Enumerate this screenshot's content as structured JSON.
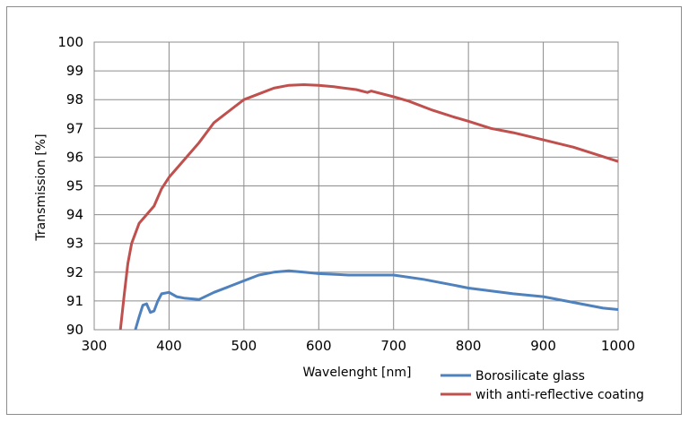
{
  "chart_data": {
    "type": "line",
    "title": "",
    "xlabel": "Wavelenght [nm]",
    "ylabel": "Transmission  [%]",
    "xlim": [
      300,
      1000
    ],
    "ylim": [
      90,
      100
    ],
    "xticks": [
      300,
      400,
      500,
      600,
      700,
      800,
      900,
      1000
    ],
    "yticks": [
      90,
      91,
      92,
      93,
      94,
      95,
      96,
      97,
      98,
      99,
      100
    ],
    "grid": true,
    "legend_position": "bottom-right",
    "series": [
      {
        "name": "Borosilicate glass",
        "color": "#4f81bd",
        "points": [
          [
            355,
            90.0
          ],
          [
            360,
            90.45
          ],
          [
            365,
            90.85
          ],
          [
            370,
            90.9
          ],
          [
            375,
            90.6
          ],
          [
            380,
            90.65
          ],
          [
            385,
            91.0
          ],
          [
            390,
            91.25
          ],
          [
            400,
            91.3
          ],
          [
            410,
            91.15
          ],
          [
            420,
            91.1
          ],
          [
            440,
            91.05
          ],
          [
            460,
            91.3
          ],
          [
            480,
            91.5
          ],
          [
            500,
            91.7
          ],
          [
            520,
            91.9
          ],
          [
            540,
            92.0
          ],
          [
            560,
            92.05
          ],
          [
            580,
            92.0
          ],
          [
            600,
            91.95
          ],
          [
            640,
            91.9
          ],
          [
            700,
            91.9
          ],
          [
            740,
            91.75
          ],
          [
            780,
            91.55
          ],
          [
            800,
            91.45
          ],
          [
            860,
            91.25
          ],
          [
            900,
            91.15
          ],
          [
            940,
            90.95
          ],
          [
            980,
            90.75
          ],
          [
            1000,
            90.7
          ]
        ]
      },
      {
        "name": "with anti-reflective coating",
        "color": "#c0504d",
        "points": [
          [
            335,
            90.0
          ],
          [
            340,
            91.2
          ],
          [
            345,
            92.3
          ],
          [
            350,
            93.0
          ],
          [
            360,
            93.7
          ],
          [
            370,
            94.0
          ],
          [
            380,
            94.3
          ],
          [
            390,
            94.9
          ],
          [
            400,
            95.3
          ],
          [
            420,
            95.9
          ],
          [
            440,
            96.5
          ],
          [
            460,
            97.2
          ],
          [
            480,
            97.6
          ],
          [
            500,
            98.0
          ],
          [
            520,
            98.2
          ],
          [
            540,
            98.4
          ],
          [
            560,
            98.5
          ],
          [
            580,
            98.52
          ],
          [
            600,
            98.5
          ],
          [
            620,
            98.45
          ],
          [
            650,
            98.35
          ],
          [
            665,
            98.25
          ],
          [
            670,
            98.3
          ],
          [
            700,
            98.1
          ],
          [
            720,
            97.95
          ],
          [
            750,
            97.65
          ],
          [
            780,
            97.4
          ],
          [
            800,
            97.25
          ],
          [
            830,
            97.0
          ],
          [
            860,
            96.85
          ],
          [
            900,
            96.6
          ],
          [
            940,
            96.35
          ],
          [
            970,
            96.1
          ],
          [
            1000,
            95.85
          ]
        ]
      }
    ]
  }
}
